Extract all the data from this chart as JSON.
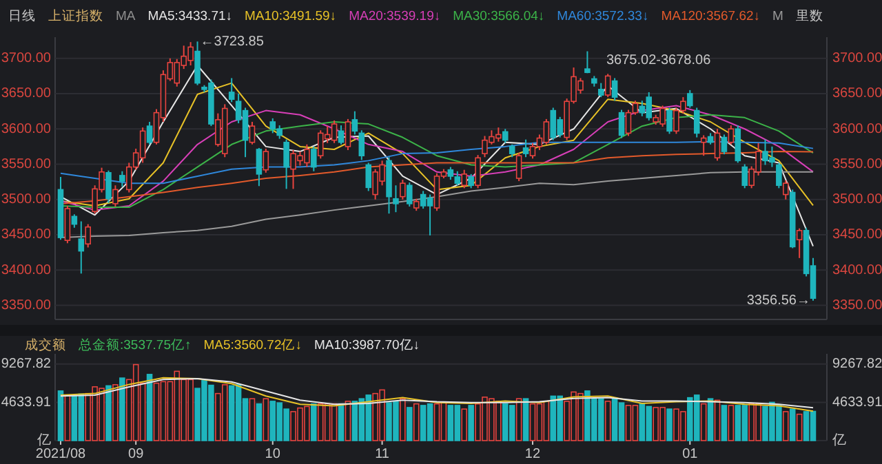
{
  "chart_data": [
    {
      "type": "candlestick",
      "title": "上证指数",
      "subtitle": "日线",
      "annotations": [
        "MA",
        "里数",
        "3675.02-3678.06",
        "←3723.85",
        "3356.56→"
      ],
      "categories": [
        null,
        null,
        null,
        null,
        null,
        null,
        null,
        null,
        null,
        null,
        null,
        null,
        null,
        null,
        null,
        null,
        null,
        null,
        null,
        null,
        null,
        null,
        null,
        null,
        null,
        null,
        null,
        null,
        null,
        null,
        null,
        null,
        null,
        null,
        null,
        null,
        null,
        null,
        null,
        null,
        null,
        null,
        null,
        null,
        null,
        null,
        null,
        null,
        null,
        null,
        null,
        null,
        null,
        null,
        null,
        null,
        null,
        null,
        null,
        null,
        null,
        null,
        null,
        null,
        null,
        null,
        null,
        null,
        null,
        null,
        null,
        null,
        null,
        null,
        null,
        null,
        null,
        null,
        null,
        null,
        null,
        null,
        null,
        null,
        null,
        null,
        null,
        null,
        null,
        null,
        null,
        null,
        null,
        null,
        null,
        null,
        null,
        null,
        null,
        null,
        null,
        null,
        null,
        null,
        null,
        null,
        null,
        null,
        null,
        null,
        null
      ],
      "ohlc": [
        [
          3514,
          3532,
          3443,
          3446
        ],
        [
          3442,
          3491,
          3438,
          3487
        ],
        [
          3476,
          3479,
          3460,
          3465
        ],
        [
          3444,
          3469,
          3395,
          3427
        ],
        [
          3437,
          3465,
          3432,
          3461
        ],
        [
          3483,
          3520,
          3480,
          3515
        ],
        [
          3514,
          3545,
          3510,
          3539
        ],
        [
          3538,
          3541,
          3495,
          3501
        ],
        [
          3494,
          3520,
          3490,
          3514
        ],
        [
          3534,
          3540,
          3518,
          3526
        ],
        [
          3514,
          3552,
          3510,
          3546
        ],
        [
          3546,
          3572,
          3542,
          3566
        ],
        [
          3559,
          3602,
          3552,
          3597
        ],
        [
          3604,
          3610,
          3578,
          3581
        ],
        [
          3581,
          3628,
          3578,
          3623
        ],
        [
          3616,
          3683,
          3610,
          3677
        ],
        [
          3671,
          3700,
          3668,
          3694
        ],
        [
          3665,
          3699,
          3660,
          3694
        ],
        [
          3690,
          3718,
          3685,
          3703
        ],
        [
          3697,
          3723,
          3690,
          3716
        ],
        [
          3710,
          3723.85,
          3662,
          3665
        ],
        [
          3659,
          3662,
          3652,
          3656
        ],
        [
          3665,
          3670,
          3604,
          3607
        ],
        [
          3578,
          3622,
          3575,
          3613
        ],
        [
          3565,
          3635,
          3560,
          3629
        ],
        [
          3652,
          3672,
          3638,
          3642
        ],
        [
          3639,
          3650,
          3608,
          3613
        ],
        [
          3626,
          3630,
          3560,
          3584
        ],
        [
          3581,
          3610,
          3578,
          3604
        ],
        [
          3571,
          3573,
          3519,
          3536
        ],
        [
          3542,
          3572,
          3538,
          3568
        ],
        [
          3610,
          3615,
          3594,
          3600
        ],
        [
          3600,
          3605,
          3586,
          3591
        ],
        [
          3581,
          3585,
          3515,
          3546
        ],
        [
          3543,
          3570,
          3515,
          3565
        ],
        [
          3555,
          3568,
          3548,
          3562
        ],
        [
          3552,
          3578,
          3546,
          3571
        ],
        [
          3571,
          3575,
          3540,
          3546
        ],
        [
          3562,
          3598,
          3558,
          3594
        ],
        [
          3586,
          3604,
          3580,
          3592
        ],
        [
          3584,
          3612,
          3580,
          3607
        ],
        [
          3597,
          3605,
          3578,
          3581
        ],
        [
          3575,
          3614,
          3570,
          3610
        ],
        [
          3613,
          3625,
          3592,
          3597
        ],
        [
          3594,
          3598,
          3556,
          3562
        ],
        [
          3549,
          3552,
          3512,
          3517
        ],
        [
          3507,
          3543,
          3500,
          3539
        ],
        [
          3526,
          3555,
          3520,
          3549
        ],
        [
          3555,
          3560,
          3480,
          3504
        ],
        [
          3501,
          3520,
          3482,
          3494
        ],
        [
          3504,
          3528,
          3500,
          3523
        ],
        [
          3520,
          3524,
          3490,
          3494
        ],
        [
          3488,
          3501,
          3484,
          3497
        ],
        [
          3507,
          3512,
          3487,
          3491
        ],
        [
          3502,
          3507,
          3449,
          3491
        ],
        [
          3488,
          3537,
          3484,
          3533
        ],
        [
          3533,
          3543,
          3530,
          3539
        ],
        [
          3542,
          3546,
          3528,
          3533
        ],
        [
          3532,
          3540,
          3520,
          3523
        ],
        [
          3520,
          3542,
          3516,
          3536
        ],
        [
          3532,
          3536,
          3516,
          3520
        ],
        [
          3520,
          3563,
          3516,
          3559
        ],
        [
          3565,
          3590,
          3560,
          3584
        ],
        [
          3581,
          3598,
          3578,
          3589
        ],
        [
          3587,
          3602,
          3582,
          3592
        ],
        [
          3596,
          3600,
          3580,
          3584
        ],
        [
          3575,
          3578,
          3560,
          3565
        ],
        [
          3530,
          3566,
          3526,
          3562
        ],
        [
          3573,
          3585,
          3560,
          3565
        ],
        [
          3562,
          3580,
          3558,
          3575
        ],
        [
          3575,
          3592,
          3570,
          3587
        ],
        [
          3581,
          3614,
          3578,
          3610
        ],
        [
          3626,
          3630,
          3584,
          3588
        ],
        [
          3613,
          3617,
          3588,
          3592
        ],
        [
          3588,
          3643,
          3584,
          3639
        ],
        [
          3639,
          3687,
          3636,
          3674
        ],
        [
          3655,
          3672,
          3650,
          3668
        ],
        [
          3685,
          3710,
          3679,
          3680
        ],
        [
          3671,
          3675,
          3660,
          3665
        ],
        [
          3656,
          3665,
          3645,
          3648
        ],
        [
          3648,
          3678,
          3645,
          3675
        ],
        [
          3668,
          3672,
          3640,
          3645
        ],
        [
          3623,
          3627,
          3587,
          3591
        ],
        [
          3594,
          3627,
          3590,
          3623
        ],
        [
          3623,
          3640,
          3620,
          3636
        ],
        [
          3632,
          3640,
          3618,
          3623
        ],
        [
          3645,
          3652,
          3612,
          3616
        ],
        [
          3610,
          3620,
          3606,
          3616
        ],
        [
          3607,
          3633,
          3603,
          3629
        ],
        [
          3626,
          3630,
          3593,
          3597
        ],
        [
          3597,
          3630,
          3593,
          3626
        ],
        [
          3626,
          3645,
          3622,
          3639
        ],
        [
          3650,
          3655,
          3630,
          3633
        ],
        [
          3626,
          3630,
          3588,
          3594
        ],
        [
          3581,
          3591,
          3562,
          3587
        ],
        [
          3589,
          3594,
          3578,
          3581
        ],
        [
          3559,
          3600,
          3555,
          3594
        ],
        [
          3588,
          3592,
          3564,
          3568
        ],
        [
          3581,
          3605,
          3578,
          3600
        ],
        [
          3600,
          3605,
          3552,
          3555
        ],
        [
          3546,
          3550,
          3516,
          3520
        ],
        [
          3520,
          3547,
          3516,
          3543
        ],
        [
          3539,
          3580,
          3534,
          3568
        ],
        [
          3568,
          3585,
          3549,
          3555
        ],
        [
          3559,
          3575,
          3546,
          3553
        ],
        [
          3549,
          3552,
          3516,
          3520
        ],
        [
          3507,
          3527,
          3500,
          3523
        ],
        [
          3510,
          3514,
          3431,
          3433
        ],
        [
          3443,
          3459,
          3417,
          3456
        ],
        [
          3456,
          3460,
          3391,
          3395
        ],
        [
          3406,
          3417,
          3356.56,
          3360
        ]
      ],
      "series": [
        {
          "name": "MA5:3433.71↓",
          "type": "line",
          "color": "#e6e6e6",
          "values": [
            3504,
            null,
            null,
            null,
            null,
            3478,
            null,
            null,
            null,
            null,
            3526,
            null,
            null,
            null,
            null,
            3610,
            null,
            null,
            null,
            null,
            3690,
            null,
            null,
            null,
            null,
            3633,
            null,
            null,
            null,
            null,
            3575,
            null,
            null,
            null,
            null,
            3568,
            null,
            null,
            null,
            null,
            3588,
            null,
            null,
            null,
            null,
            3590,
            null,
            null,
            null,
            null,
            3533,
            null,
            null,
            null,
            null,
            3507,
            null,
            null,
            null,
            null,
            3530,
            null,
            null,
            null,
            null,
            3581,
            null,
            null,
            null,
            null,
            3578,
            null,
            null,
            null,
            null,
            3600,
            null,
            null,
            null,
            null,
            3661,
            null,
            null,
            null,
            null,
            3623,
            null,
            null,
            null,
            null,
            3629,
            null,
            null,
            null,
            null,
            3600,
            null,
            null,
            null,
            null,
            3562,
            null,
            null,
            null,
            null,
            3552,
            null,
            null,
            null,
            null,
            3433.71
          ]
        },
        {
          "name": "MA10:3491.59↓",
          "type": "line",
          "color": "#e8c227",
          "values": [
            3498,
            null,
            null,
            null,
            null,
            3491,
            null,
            null,
            null,
            null,
            3501,
            null,
            null,
            null,
            null,
            3552,
            null,
            null,
            null,
            null,
            3649,
            null,
            null,
            null,
            null,
            3665,
            null,
            null,
            null,
            null,
            3604,
            null,
            null,
            null,
            null,
            3575,
            null,
            null,
            null,
            null,
            3571,
            null,
            null,
            null,
            null,
            3594,
            null,
            null,
            null,
            null,
            3565,
            null,
            null,
            null,
            null,
            3514,
            null,
            null,
            null,
            null,
            3520,
            null,
            null,
            null,
            null,
            3559,
            null,
            null,
            null,
            null,
            3575,
            null,
            null,
            null,
            null,
            3584,
            null,
            null,
            null,
            null,
            3642,
            null,
            null,
            null,
            null,
            3636,
            null,
            null,
            null,
            null,
            3626,
            null,
            null,
            null,
            null,
            3610,
            null,
            null,
            null,
            null,
            3581,
            null,
            null,
            null,
            null,
            3555,
            null,
            null,
            null,
            null,
            3491.59
          ]
        },
        {
          "name": "MA20:3539.19↓",
          "type": "line",
          "color": "#d83fb8",
          "values": [
            3498,
            null,
            null,
            null,
            null,
            3485,
            null,
            null,
            null,
            null,
            3491,
            null,
            null,
            null,
            null,
            3526,
            null,
            null,
            null,
            null,
            3578,
            null,
            null,
            null,
            null,
            3610,
            null,
            null,
            null,
            null,
            3626,
            null,
            null,
            null,
            null,
            3620,
            null,
            null,
            null,
            null,
            3600,
            null,
            null,
            null,
            null,
            3578,
            null,
            null,
            null,
            null,
            3568,
            null,
            null,
            null,
            null,
            3539,
            null,
            null,
            null,
            null,
            3533,
            null,
            null,
            null,
            null,
            3539,
            null,
            null,
            null,
            null,
            3549,
            null,
            null,
            null,
            null,
            3571,
            null,
            null,
            null,
            null,
            3610,
            null,
            null,
            null,
            null,
            3626,
            null,
            null,
            null,
            null,
            3633,
            null,
            null,
            null,
            null,
            3620,
            null,
            null,
            null,
            null,
            3600,
            null,
            null,
            null,
            null,
            3575,
            null,
            null,
            null,
            null,
            3539.19
          ]
        },
        {
          "name": "MA30:3566.04↓",
          "type": "line",
          "color": "#3cb449",
          "values": [
            3491,
            null,
            null,
            null,
            null,
            3489,
            null,
            null,
            null,
            null,
            3489,
            null,
            null,
            null,
            null,
            3514,
            null,
            null,
            null,
            null,
            3546,
            null,
            null,
            null,
            null,
            3578,
            null,
            null,
            null,
            null,
            3597,
            null,
            null,
            null,
            null,
            3604,
            null,
            null,
            null,
            null,
            3610,
            null,
            null,
            null,
            null,
            3607,
            null,
            null,
            null,
            null,
            3588,
            null,
            null,
            null,
            null,
            3562,
            null,
            null,
            null,
            null,
            3549,
            null,
            null,
            null,
            null,
            3546,
            null,
            null,
            null,
            null,
            3549,
            null,
            null,
            null,
            null,
            3552,
            null,
            null,
            null,
            null,
            3578,
            null,
            null,
            null,
            null,
            3604,
            null,
            null,
            null,
            null,
            3616,
            null,
            null,
            null,
            null,
            3620,
            null,
            null,
            null,
            null,
            3616,
            null,
            null,
            null,
            null,
            3597,
            null,
            null,
            null,
            null,
            3566.04
          ]
        },
        {
          "name": "MA60:3572.33↓",
          "type": "line",
          "color": "#2f88dc",
          "values": [
            3537,
            null,
            null,
            null,
            null,
            3530,
            null,
            null,
            null,
            null,
            3523,
            null,
            null,
            null,
            null,
            3523,
            null,
            null,
            null,
            null,
            3533,
            null,
            null,
            null,
            null,
            3543,
            null,
            null,
            null,
            null,
            3546,
            null,
            null,
            null,
            null,
            3546,
            null,
            null,
            null,
            null,
            3549,
            null,
            null,
            null,
            null,
            3555,
            null,
            null,
            null,
            null,
            3565,
            null,
            null,
            null,
            null,
            3566,
            null,
            null,
            null,
            null,
            3571,
            null,
            null,
            null,
            null,
            3575,
            null,
            null,
            null,
            null,
            3581,
            null,
            null,
            null,
            null,
            3581,
            null,
            null,
            null,
            null,
            3581,
            null,
            null,
            null,
            null,
            3581,
            null,
            null,
            null,
            null,
            3581,
            null,
            null,
            null,
            null,
            3582,
            null,
            null,
            null,
            null,
            3581,
            null,
            null,
            null,
            null,
            3580,
            null,
            null,
            null,
            null,
            3572.33
          ]
        },
        {
          "name": "MA120:3567.62↓",
          "type": "line",
          "color": "#e35a2b",
          "values": [
            3494,
            null,
            null,
            null,
            null,
            3498,
            null,
            null,
            null,
            null,
            3504,
            null,
            null,
            null,
            null,
            3510,
            null,
            null,
            null,
            null,
            3517,
            null,
            null,
            null,
            null,
            3523,
            null,
            null,
            null,
            null,
            3530,
            null,
            null,
            null,
            null,
            3534,
            null,
            null,
            null,
            null,
            3539,
            null,
            null,
            null,
            null,
            3546,
            null,
            null,
            null,
            null,
            3549,
            null,
            null,
            null,
            null,
            3552,
            null,
            null,
            null,
            null,
            3552,
            null,
            null,
            null,
            null,
            3552,
            null,
            null,
            null,
            null,
            3552,
            null,
            null,
            null,
            null,
            3552,
            null,
            null,
            null,
            null,
            3559,
            null,
            null,
            null,
            null,
            3562,
            null,
            null,
            null,
            null,
            3564,
            null,
            null,
            null,
            null,
            3565,
            null,
            null,
            null,
            null,
            3566,
            null,
            null,
            null,
            null,
            3568,
            null,
            null,
            null,
            null,
            3567.62
          ]
        },
        {
          "name": "M",
          "type": "line",
          "color": "#9a9a9a",
          "values": [
            3446,
            null,
            null,
            null,
            null,
            3448,
            null,
            null,
            null,
            null,
            3449,
            null,
            null,
            null,
            null,
            3453,
            null,
            null,
            null,
            null,
            3456,
            null,
            null,
            null,
            null,
            3462,
            null,
            null,
            null,
            null,
            3472,
            null,
            null,
            null,
            null,
            3478,
            null,
            null,
            null,
            null,
            3485,
            null,
            null,
            null,
            null,
            3491,
            null,
            null,
            null,
            null,
            3497,
            null,
            null,
            null,
            null,
            3504,
            null,
            null,
            null,
            null,
            3512,
            null,
            null,
            null,
            null,
            3517,
            null,
            null,
            null,
            null,
            3523,
            null,
            null,
            null,
            null,
            3521,
            null,
            null,
            null,
            null,
            3526,
            null,
            null,
            null,
            null,
            3530,
            null,
            null,
            null,
            null,
            3534,
            null,
            null,
            null,
            null,
            3538,
            null,
            null,
            null,
            null,
            3539,
            null,
            null,
            null,
            null,
            3539,
            null,
            null,
            null,
            null,
            3539
          ]
        }
      ],
      "ylim": [
        3330,
        3730
      ],
      "yticks": [
        {
          "value": 3350,
          "label": "3350.00"
        },
        {
          "value": 3400,
          "label": "3400.00"
        },
        {
          "value": 3450,
          "label": "3450.00"
        },
        {
          "value": 3500,
          "label": "3500.00"
        },
        {
          "value": 3550,
          "label": "3550.00"
        },
        {
          "value": 3600,
          "label": "3600.00"
        },
        {
          "value": 3650,
          "label": "3650.00"
        },
        {
          "value": 3700,
          "label": "3700.00"
        }
      ],
      "y2lim": [
        3330,
        3730
      ],
      "y2ticks": [
        {
          "value": 3350,
          "label": "3350.00"
        },
        {
          "value": 3400,
          "label": "3400.00"
        },
        {
          "value": 3450,
          "label": "3450.00"
        },
        {
          "value": 3500,
          "label": "3500.00"
        },
        {
          "value": 3550,
          "label": "3550.00"
        },
        {
          "value": 3600,
          "label": "3600.00"
        },
        {
          "value": 3650,
          "label": "3650.00"
        },
        {
          "value": 3700,
          "label": "3700.00"
        }
      ],
      "grid": "y",
      "legend": "top",
      "tick_labels": "y"
    },
    {
      "type": "bar",
      "title": "成交额",
      "categories": [
        "2021/08",
        null,
        null,
        null,
        null,
        null,
        null,
        null,
        null,
        null,
        null,
        "09",
        null,
        null,
        null,
        null,
        null,
        null,
        null,
        null,
        null,
        null,
        null,
        null,
        null,
        null,
        null,
        null,
        null,
        null,
        null,
        "10",
        null,
        null,
        null,
        null,
        null,
        null,
        null,
        null,
        null,
        null,
        null,
        null,
        null,
        null,
        null,
        "11",
        null,
        null,
        null,
        null,
        null,
        null,
        null,
        null,
        null,
        null,
        null,
        null,
        null,
        null,
        null,
        null,
        null,
        null,
        null,
        null,
        null,
        "12",
        null,
        null,
        null,
        null,
        null,
        null,
        null,
        null,
        null,
        null,
        null,
        null,
        null,
        null,
        null,
        null,
        null,
        null,
        null,
        null,
        null,
        null,
        "01",
        null,
        null,
        null,
        null,
        null,
        null,
        null,
        null,
        null,
        null,
        null,
        null,
        null,
        null,
        null,
        null,
        null,
        null
      ],
      "series": [
        {
          "name": "总金额:3537.75亿↑",
          "type": "bar",
          "values": [
            6010,
            5509,
            5509,
            5634,
            5697,
            6510,
            6323,
            6636,
            6761,
            7575,
            7387,
            9200,
            6949,
            8013,
            6949,
            7136,
            7136,
            8388,
            7387,
            7387,
            6323,
            7262,
            6700,
            5697,
            6761,
            6636,
            6761,
            5071,
            5071,
            4445,
            5071,
            4758,
            4570,
            3819,
            3506,
            3944,
            4132,
            4445,
            4445,
            4445,
            4445,
            4445,
            4758,
            4758,
            5071,
            5509,
            5697,
            6135,
            4570,
            4758,
            5071,
            4006,
            4445,
            4257,
            4445,
            4445,
            4570,
            4257,
            4257,
            3819,
            4257,
            4445,
            5258,
            5071,
            4758,
            4445,
            4257,
            5071,
            5071,
            4445,
            4445,
            4758,
            5384,
            5384,
            4758,
            5884,
            5697,
            6010,
            5071,
            5071,
            4758,
            5071,
            4570,
            4257,
            4257,
            4445,
            4132,
            4006,
            4006,
            3819,
            3819,
            3506,
            5196,
            5509,
            4445,
            5071,
            4883,
            4257,
            4257,
            4257,
            4257,
            4445,
            4445,
            4132,
            4632,
            4257,
            3506,
            3819,
            3193,
            3506,
            3537.75
          ],
          "colors": [
            "#1fb5bd",
            "#e8443f",
            "#1fb5bd",
            "#1fb5bd",
            "#e8443f",
            "#e8443f",
            "#e8443f",
            "#1fb5bd",
            "#e8443f",
            "#1fb5bd",
            "#e8443f",
            "#e8443f",
            "#e8443f",
            "#1fb5bd",
            "#e8443f",
            "#e8443f",
            "#e8443f",
            "#e8443f",
            "#e8443f",
            "#e8443f",
            "#1fb5bd",
            "#1fb5bd",
            "#1fb5bd",
            "#e8443f",
            "#e8443f",
            "#1fb5bd",
            "#1fb5bd",
            "#1fb5bd",
            "#e8443f",
            "#1fb5bd",
            "#e8443f",
            "#1fb5bd",
            "#1fb5bd",
            "#1fb5bd",
            "#e8443f",
            "#e8443f",
            "#e8443f",
            "#1fb5bd",
            "#e8443f",
            "#e8443f",
            "#e8443f",
            "#1fb5bd",
            "#e8443f",
            "#1fb5bd",
            "#1fb5bd",
            "#1fb5bd",
            "#e8443f",
            "#e8443f",
            "#1fb5bd",
            "#1fb5bd",
            "#e8443f",
            "#1fb5bd",
            "#e8443f",
            "#1fb5bd",
            "#1fb5bd",
            "#e8443f",
            "#e8443f",
            "#1fb5bd",
            "#1fb5bd",
            "#e8443f",
            "#1fb5bd",
            "#e8443f",
            "#e8443f",
            "#e8443f",
            "#e8443f",
            "#1fb5bd",
            "#1fb5bd",
            "#e8443f",
            "#1fb5bd",
            "#e8443f",
            "#e8443f",
            "#e8443f",
            "#1fb5bd",
            "#1fb5bd",
            "#e8443f",
            "#e8443f",
            "#e8443f",
            "#1fb5bd",
            "#1fb5bd",
            "#1fb5bd",
            "#e8443f",
            "#1fb5bd",
            "#1fb5bd",
            "#e8443f",
            "#e8443f",
            "#1fb5bd",
            "#1fb5bd",
            "#e8443f",
            "#e8443f",
            "#1fb5bd",
            "#e8443f",
            "#e8443f",
            "#1fb5bd",
            "#1fb5bd",
            "#e8443f",
            "#1fb5bd",
            "#e8443f",
            "#1fb5bd",
            "#e8443f",
            "#1fb5bd",
            "#1fb5bd",
            "#e8443f",
            "#e8443f",
            "#1fb5bd",
            "#1fb5bd",
            "#1fb5bd",
            "#e8443f",
            "#1fb5bd",
            "#e8443f",
            "#1fb5bd",
            "#1fb5bd"
          ]
        },
        {
          "name": "MA5:3560.72亿↓",
          "type": "line",
          "color": "#e8c227",
          "values": [
            5500,
            null,
            null,
            null,
            null,
            5700,
            null,
            null,
            null,
            null,
            6800,
            null,
            null,
            null,
            null,
            7600,
            null,
            null,
            null,
            null,
            7500,
            null,
            null,
            null,
            null,
            6900,
            null,
            null,
            null,
            null,
            5400,
            null,
            null,
            null,
            null,
            4400,
            null,
            null,
            null,
            null,
            4200,
            null,
            null,
            null,
            null,
            4700,
            null,
            null,
            null,
            null,
            5200,
            null,
            null,
            null,
            null,
            4600,
            null,
            null,
            null,
            null,
            4500,
            null,
            null,
            null,
            null,
            4800,
            null,
            null,
            null,
            null,
            4600,
            null,
            null,
            null,
            null,
            5300,
            null,
            null,
            null,
            null,
            5400,
            null,
            null,
            null,
            null,
            4500,
            null,
            null,
            null,
            null,
            4700,
            null,
            null,
            null,
            null,
            4800,
            null,
            null,
            null,
            null,
            4400,
            null,
            null,
            null,
            null,
            4200,
            null,
            null,
            null,
            null,
            3560.72
          ]
        },
        {
          "name": "MA10:3987.70亿↓",
          "type": "line",
          "color": "#e6e6e6",
          "values": [
            5400,
            null,
            null,
            null,
            null,
            5500,
            null,
            null,
            null,
            null,
            6500,
            null,
            null,
            null,
            null,
            7400,
            null,
            null,
            null,
            null,
            7500,
            null,
            null,
            null,
            null,
            7100,
            null,
            null,
            null,
            null,
            6000,
            null,
            null,
            null,
            null,
            4900,
            null,
            null,
            null,
            null,
            4400,
            null,
            null,
            null,
            null,
            4500,
            null,
            null,
            null,
            null,
            4900,
            null,
            null,
            null,
            null,
            4700,
            null,
            null,
            null,
            null,
            4600,
            null,
            null,
            null,
            null,
            4600,
            null,
            null,
            null,
            null,
            4700,
            null,
            null,
            null,
            null,
            5100,
            null,
            null,
            null,
            null,
            5200,
            null,
            null,
            null,
            null,
            4800,
            null,
            null,
            null,
            null,
            4800,
            null,
            null,
            null,
            null,
            4700,
            null,
            null,
            null,
            null,
            4600,
            null,
            null,
            null,
            null,
            4400,
            null,
            null,
            null,
            null,
            3987.7
          ]
        }
      ],
      "ylim": [
        0,
        10500
      ],
      "yticks": [
        {
          "value": 0,
          "label": "亿"
        },
        {
          "value": 4633.91,
          "label": "4633.91"
        },
        {
          "value": 9267.82,
          "label": "9267.82"
        }
      ],
      "y2lim": [
        0,
        10500
      ],
      "y2ticks": [
        {
          "value": 0,
          "label": "亿"
        },
        {
          "value": 4633.91,
          "label": "4633.91"
        },
        {
          "value": 9267.82,
          "label": "9267.82"
        }
      ],
      "grid": "y",
      "legend": "top"
    }
  ]
}
